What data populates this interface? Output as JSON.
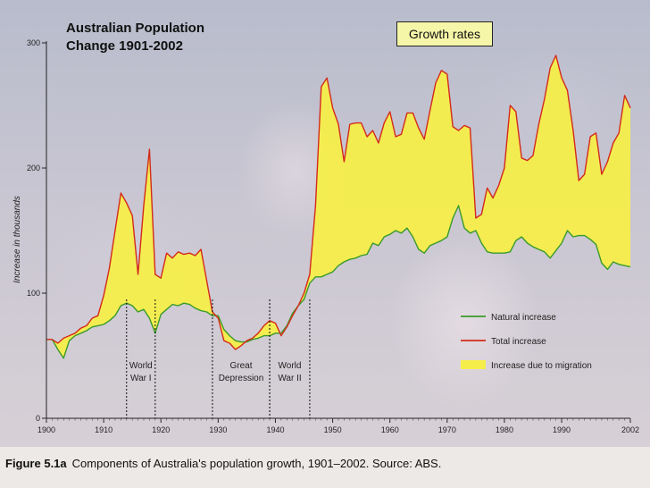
{
  "title": "Australian Population Change 1901-2002",
  "growth_rates_label": "Growth rates",
  "caption": {
    "label": "Figure 5.1a",
    "text": "Components of Australia's population growth, 1901–2002. Source: ABS."
  },
  "colors": {
    "natural": "#3a9a2a",
    "total": "#d42a1a",
    "migration": "#f5ee4a"
  },
  "chart_data": {
    "type": "area",
    "title": "Australian Population Change 1901-2002",
    "ylabel": "Increase in thousands",
    "xlabel": "",
    "xlim": [
      1900,
      2002
    ],
    "ylim": [
      0,
      300
    ],
    "x_ticks": [
      1900,
      1910,
      1920,
      1930,
      1940,
      1950,
      1960,
      1970,
      1980,
      1990,
      2002
    ],
    "y_ticks": [
      0,
      100,
      200,
      300
    ],
    "legend": {
      "position": "bottom-right",
      "entries": [
        {
          "name": "Natural increase",
          "series": "natural"
        },
        {
          "name": "Total increase",
          "series": "total"
        },
        {
          "name": "Increase due to migration",
          "series": "migration"
        }
      ]
    },
    "annotations": [
      {
        "lines": [
          "World",
          "War I"
        ],
        "start": 1914,
        "end": 1919
      },
      {
        "lines": [
          "Great",
          "Depression"
        ],
        "start": 1929,
        "end": 1939
      },
      {
        "lines": [
          "World",
          "War II"
        ],
        "start": 1939,
        "end": 1946
      }
    ],
    "series": [
      {
        "name": "Total increase",
        "key": "total",
        "points": [
          [
            1900,
            63
          ],
          [
            1901,
            63
          ],
          [
            1902,
            60
          ],
          [
            1903,
            64
          ],
          [
            1904,
            66
          ],
          [
            1905,
            68
          ],
          [
            1906,
            72
          ],
          [
            1907,
            74
          ],
          [
            1908,
            80
          ],
          [
            1909,
            82
          ],
          [
            1910,
            98
          ],
          [
            1911,
            120
          ],
          [
            1912,
            150
          ],
          [
            1913,
            180
          ],
          [
            1914,
            172
          ],
          [
            1915,
            162
          ],
          [
            1916,
            115
          ],
          [
            1917,
            170
          ],
          [
            1918,
            215
          ],
          [
            1919,
            115
          ],
          [
            1920,
            112
          ],
          [
            1921,
            132
          ],
          [
            1922,
            128
          ],
          [
            1923,
            133
          ],
          [
            1924,
            131
          ],
          [
            1925,
            132
          ],
          [
            1926,
            130
          ],
          [
            1927,
            135
          ],
          [
            1928,
            110
          ],
          [
            1929,
            85
          ],
          [
            1930,
            80
          ],
          [
            1931,
            62
          ],
          [
            1932,
            60
          ],
          [
            1933,
            55
          ],
          [
            1934,
            58
          ],
          [
            1935,
            62
          ],
          [
            1936,
            64
          ],
          [
            1937,
            68
          ],
          [
            1938,
            74
          ],
          [
            1939,
            78
          ],
          [
            1940,
            76
          ],
          [
            1941,
            66
          ],
          [
            1942,
            73
          ],
          [
            1943,
            82
          ],
          [
            1944,
            90
          ],
          [
            1945,
            100
          ],
          [
            1946,
            115
          ],
          [
            1947,
            170
          ],
          [
            1948,
            265
          ],
          [
            1949,
            272
          ],
          [
            1950,
            248
          ],
          [
            1951,
            235
          ],
          [
            1952,
            205
          ],
          [
            1953,
            235
          ],
          [
            1954,
            236
          ],
          [
            1955,
            236
          ],
          [
            1956,
            225
          ],
          [
            1957,
            230
          ],
          [
            1958,
            220
          ],
          [
            1959,
            236
          ],
          [
            1960,
            245
          ],
          [
            1961,
            225
          ],
          [
            1962,
            227
          ],
          [
            1963,
            244
          ],
          [
            1964,
            244
          ],
          [
            1965,
            232
          ],
          [
            1966,
            223
          ],
          [
            1967,
            246
          ],
          [
            1968,
            268
          ],
          [
            1969,
            278
          ],
          [
            1970,
            275
          ],
          [
            1971,
            233
          ],
          [
            1972,
            230
          ],
          [
            1973,
            234
          ],
          [
            1974,
            232
          ],
          [
            1975,
            160
          ],
          [
            1976,
            163
          ],
          [
            1977,
            184
          ],
          [
            1978,
            176
          ],
          [
            1979,
            186
          ],
          [
            1980,
            200
          ],
          [
            1981,
            250
          ],
          [
            1982,
            245
          ],
          [
            1983,
            208
          ],
          [
            1984,
            206
          ],
          [
            1985,
            210
          ],
          [
            1986,
            235
          ],
          [
            1987,
            255
          ],
          [
            1988,
            280
          ],
          [
            1989,
            290
          ],
          [
            1990,
            272
          ],
          [
            1991,
            262
          ],
          [
            1992,
            230
          ],
          [
            1993,
            190
          ],
          [
            1994,
            195
          ],
          [
            1995,
            225
          ],
          [
            1996,
            228
          ],
          [
            1997,
            195
          ],
          [
            1998,
            205
          ],
          [
            1999,
            220
          ],
          [
            2000,
            228
          ],
          [
            2001,
            258
          ],
          [
            2002,
            248
          ]
        ]
      },
      {
        "name": "Natural increase",
        "key": "natural",
        "points": [
          [
            1900,
            63
          ],
          [
            1901,
            63
          ],
          [
            1902,
            55
          ],
          [
            1903,
            48
          ],
          [
            1904,
            62
          ],
          [
            1905,
            66
          ],
          [
            1906,
            68
          ],
          [
            1907,
            70
          ],
          [
            1908,
            73
          ],
          [
            1909,
            74
          ],
          [
            1910,
            75
          ],
          [
            1911,
            78
          ],
          [
            1912,
            82
          ],
          [
            1913,
            90
          ],
          [
            1914,
            92
          ],
          [
            1915,
            90
          ],
          [
            1916,
            85
          ],
          [
            1917,
            87
          ],
          [
            1918,
            80
          ],
          [
            1919,
            68
          ],
          [
            1920,
            83
          ],
          [
            1921,
            87
          ],
          [
            1922,
            91
          ],
          [
            1923,
            90
          ],
          [
            1924,
            92
          ],
          [
            1925,
            91
          ],
          [
            1926,
            88
          ],
          [
            1927,
            86
          ],
          [
            1928,
            85
          ],
          [
            1929,
            82
          ],
          [
            1930,
            82
          ],
          [
            1931,
            71
          ],
          [
            1932,
            66
          ],
          [
            1933,
            62
          ],
          [
            1934,
            61
          ],
          [
            1935,
            61
          ],
          [
            1936,
            63
          ],
          [
            1937,
            64
          ],
          [
            1938,
            66
          ],
          [
            1939,
            66
          ],
          [
            1940,
            68
          ],
          [
            1941,
            68
          ],
          [
            1942,
            74
          ],
          [
            1943,
            84
          ],
          [
            1944,
            90
          ],
          [
            1945,
            95
          ],
          [
            1946,
            108
          ],
          [
            1947,
            113
          ],
          [
            1948,
            113
          ],
          [
            1949,
            115
          ],
          [
            1950,
            117
          ],
          [
            1951,
            122
          ],
          [
            1952,
            125
          ],
          [
            1953,
            127
          ],
          [
            1954,
            128
          ],
          [
            1955,
            130
          ],
          [
            1956,
            131
          ],
          [
            1957,
            140
          ],
          [
            1958,
            138
          ],
          [
            1959,
            145
          ],
          [
            1960,
            147
          ],
          [
            1961,
            150
          ],
          [
            1962,
            148
          ],
          [
            1963,
            152
          ],
          [
            1964,
            145
          ],
          [
            1965,
            135
          ],
          [
            1966,
            132
          ],
          [
            1967,
            138
          ],
          [
            1968,
            140
          ],
          [
            1969,
            142
          ],
          [
            1970,
            145
          ],
          [
            1971,
            160
          ],
          [
            1972,
            170
          ],
          [
            1973,
            152
          ],
          [
            1974,
            148
          ],
          [
            1975,
            150
          ],
          [
            1976,
            140
          ],
          [
            1977,
            133
          ],
          [
            1978,
            132
          ],
          [
            1979,
            132
          ],
          [
            1980,
            132
          ],
          [
            1981,
            133
          ],
          [
            1982,
            142
          ],
          [
            1983,
            145
          ],
          [
            1984,
            140
          ],
          [
            1985,
            137
          ],
          [
            1986,
            135
          ],
          [
            1987,
            133
          ],
          [
            1988,
            128
          ],
          [
            1989,
            134
          ],
          [
            1990,
            140
          ],
          [
            1991,
            150
          ],
          [
            1992,
            145
          ],
          [
            1993,
            146
          ],
          [
            1994,
            146
          ],
          [
            1995,
            143
          ],
          [
            1996,
            139
          ],
          [
            1997,
            124
          ],
          [
            1998,
            119
          ],
          [
            1999,
            125
          ],
          [
            2000,
            123
          ],
          [
            2001,
            122
          ],
          [
            2002,
            121
          ]
        ]
      }
    ]
  }
}
